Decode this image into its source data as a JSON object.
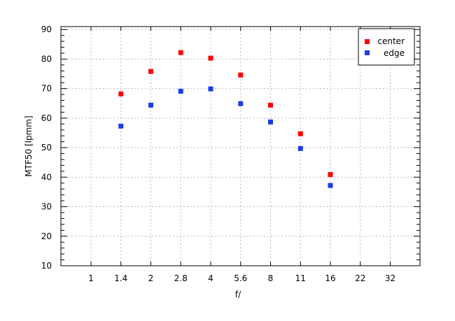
{
  "chart_data": {
    "type": "scatter",
    "title": "",
    "xlabel": "f/",
    "ylabel": "MTF50 [lpmm]",
    "x_scale": "log (f-stop categories, evenly spaced)",
    "x_ticks": [
      "1",
      "1.4",
      "2",
      "2.8",
      "4",
      "5.6",
      "8",
      "11",
      "16",
      "22",
      "32"
    ],
    "y_ticks": [
      "10",
      "20",
      "30",
      "40",
      "50",
      "60",
      "70",
      "80",
      "90"
    ],
    "ylim": [
      10,
      91
    ],
    "grid": true,
    "legend_position": "top-right",
    "series": [
      {
        "name": "center",
        "color": "#ff0000",
        "x": [
          "1.4",
          "2",
          "2.8",
          "4",
          "5.6",
          "8",
          "11",
          "16"
        ],
        "values": [
          68.2,
          75.8,
          82.2,
          80.3,
          74.6,
          64.4,
          54.7,
          40.9
        ]
      },
      {
        "name": "edge",
        "color": "#1a3de6",
        "x": [
          "1.4",
          "2",
          "2.8",
          "4",
          "5.6",
          "8",
          "11",
          "16"
        ],
        "values": [
          57.3,
          64.4,
          69.1,
          69.9,
          64.9,
          58.7,
          49.7,
          37.2
        ]
      }
    ]
  }
}
